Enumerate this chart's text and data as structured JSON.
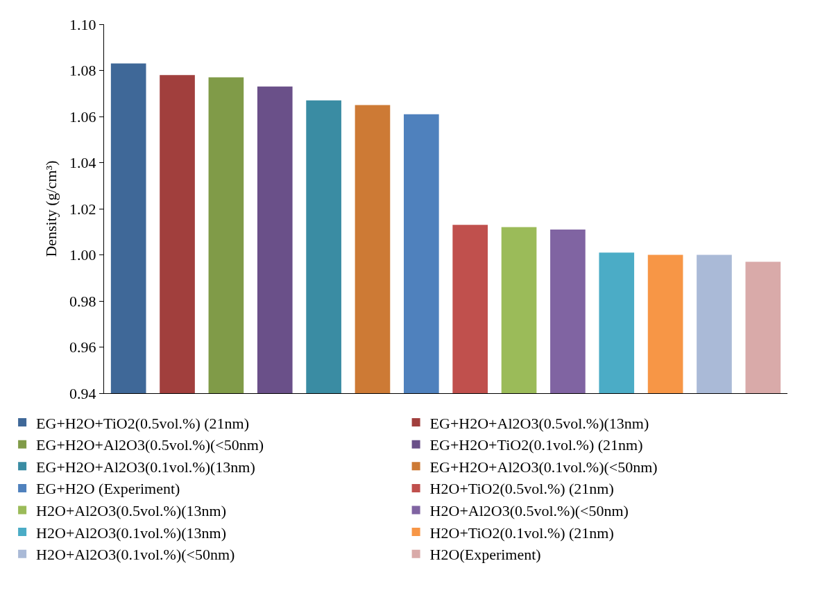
{
  "chart_data": {
    "type": "bar",
    "ylabel": "Density (g/cm³)",
    "categories": [
      null,
      null,
      null,
      null,
      null,
      null,
      null,
      null,
      null,
      null,
      null,
      null,
      null,
      null
    ],
    "series": [
      {
        "name": "EG+H2O+TiO2(0.5vol.%) (21nm)",
        "color": "#3f6898",
        "values": [
          1.083,
          null,
          null,
          null,
          null,
          null,
          null,
          null,
          null,
          null,
          null,
          null,
          null,
          null
        ]
      },
      {
        "name": "EG+H2O+Al2O3(0.5vol.%)(13nm)",
        "color": "#a13f3d",
        "values": [
          null,
          1.078,
          null,
          null,
          null,
          null,
          null,
          null,
          null,
          null,
          null,
          null,
          null,
          null
        ]
      },
      {
        "name": "EG+H2O+Al2O3(0.5vol.%)(<50nm)",
        "color": "#809b48",
        "values": [
          null,
          null,
          1.077,
          null,
          null,
          null,
          null,
          null,
          null,
          null,
          null,
          null,
          null,
          null
        ]
      },
      {
        "name": "EG+H2O+TiO2(0.1vol.%) (21nm)",
        "color": "#6a5089",
        "values": [
          null,
          null,
          null,
          1.073,
          null,
          null,
          null,
          null,
          null,
          null,
          null,
          null,
          null,
          null
        ]
      },
      {
        "name": "EG+H2O+Al2O3(0.1vol.%)(13nm)",
        "color": "#3a8ca3",
        "values": [
          null,
          null,
          null,
          null,
          1.067,
          null,
          null,
          null,
          null,
          null,
          null,
          null,
          null,
          null
        ]
      },
      {
        "name": "EG+H2O+Al2O3(0.1vol.%)(<50nm)",
        "color": "#cd7a35",
        "values": [
          null,
          null,
          null,
          null,
          null,
          1.065,
          null,
          null,
          null,
          null,
          null,
          null,
          null,
          null
        ]
      },
      {
        "name": "EG+H2O (Experiment)",
        "color": "#4f81bd",
        "values": [
          null,
          null,
          null,
          null,
          null,
          null,
          1.061,
          null,
          null,
          null,
          null,
          null,
          null,
          null
        ]
      },
      {
        "name": "H2O+TiO2(0.5vol.%) (21nm)",
        "color": "#c0504d",
        "values": [
          null,
          null,
          null,
          null,
          null,
          null,
          null,
          1.013,
          null,
          null,
          null,
          null,
          null,
          null
        ]
      },
      {
        "name": "H2O+Al2O3(0.5vol.%)(13nm)",
        "color": "#9bbb59",
        "values": [
          null,
          null,
          null,
          null,
          null,
          null,
          null,
          null,
          1.012,
          null,
          null,
          null,
          null,
          null
        ]
      },
      {
        "name": "H2O+Al2O3(0.5vol.%)(<50nm)",
        "color": "#8064a2",
        "values": [
          null,
          null,
          null,
          null,
          null,
          null,
          null,
          null,
          null,
          1.011,
          null,
          null,
          null,
          null
        ]
      },
      {
        "name": "H2O+Al2O3(0.1vol.%)(13nm)",
        "color": "#4bacc6",
        "values": [
          null,
          null,
          null,
          null,
          null,
          null,
          null,
          null,
          null,
          null,
          1.001,
          null,
          null,
          null
        ]
      },
      {
        "name": "H2O+TiO2(0.1vol.%) (21nm)",
        "color": "#f79646",
        "values": [
          null,
          null,
          null,
          null,
          null,
          null,
          null,
          null,
          null,
          null,
          null,
          1.0,
          null,
          null
        ]
      },
      {
        "name": "H2O+Al2O3(0.1vol.%)(<50nm)",
        "color": "#aabad7",
        "values": [
          null,
          null,
          null,
          null,
          null,
          null,
          null,
          null,
          null,
          null,
          null,
          null,
          1.0,
          null
        ]
      },
      {
        "name": "H2O(Experiment)",
        "color": "#d9aaa9",
        "values": [
          null,
          null,
          null,
          null,
          null,
          null,
          null,
          null,
          null,
          null,
          null,
          null,
          null,
          0.997
        ]
      }
    ],
    "ylim": [
      0.94,
      1.1
    ],
    "yticks": [
      {
        "value": 0.94,
        "label": "0.94"
      },
      {
        "value": 0.96,
        "label": "0.96"
      },
      {
        "value": 0.98,
        "label": "0.98"
      },
      {
        "value": 1.0,
        "label": "1.00"
      },
      {
        "value": 1.02,
        "label": "1.02"
      },
      {
        "value": 1.04,
        "label": "1.04"
      },
      {
        "value": 1.06,
        "label": "1.06"
      },
      {
        "value": 1.08,
        "label": "1.08"
      },
      {
        "value": 1.1,
        "label": "1.10"
      }
    ],
    "grid": false,
    "legend": "bottom"
  }
}
